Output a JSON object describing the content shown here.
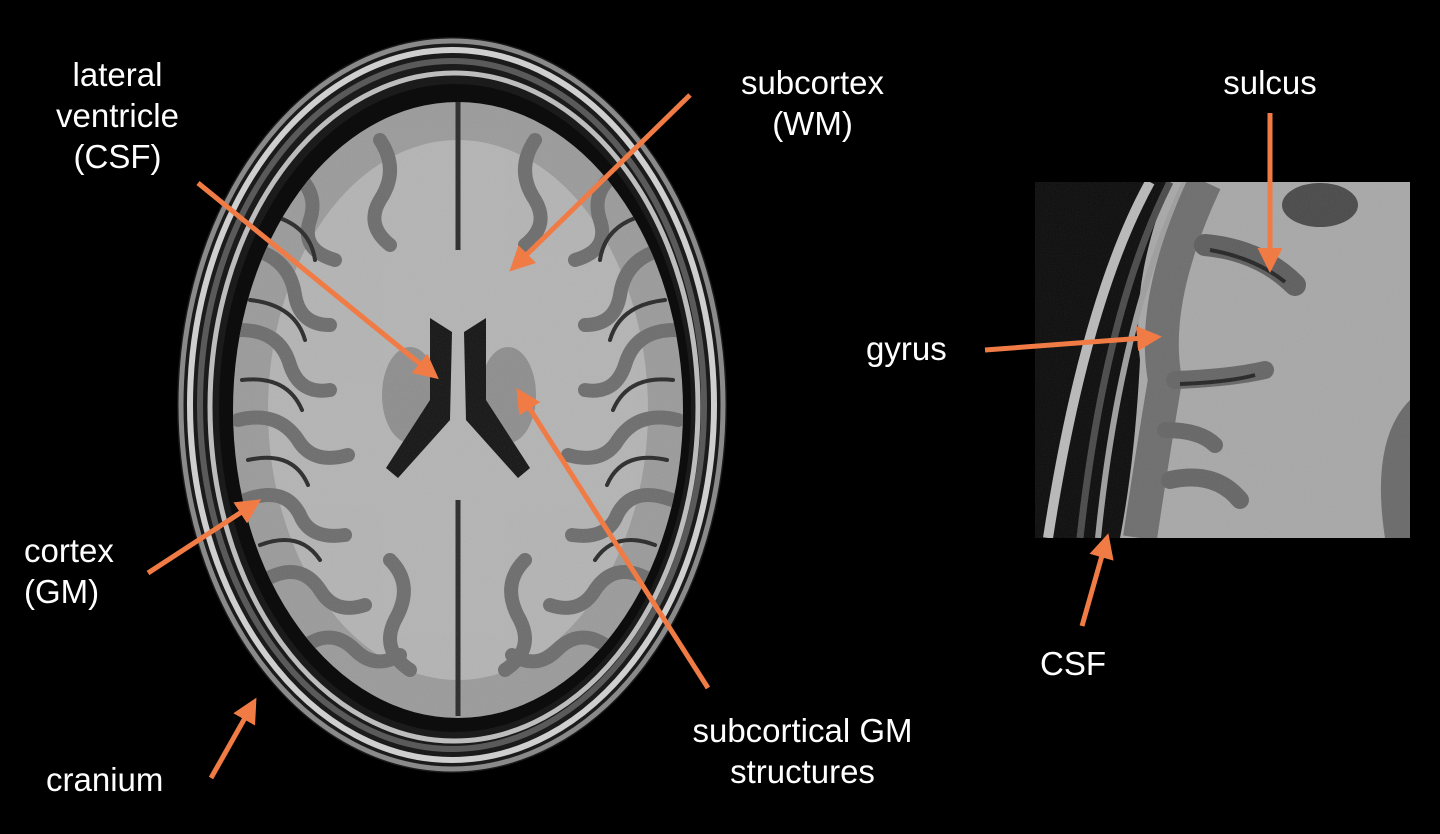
{
  "labels": {
    "lateral_ventricle": "lateral\nventricle\n(CSF)",
    "subcortex": "subcortex\n(WM)",
    "cortex": "cortex\n(GM)",
    "cranium": "cranium",
    "subcortical_gm": "subcortical GM\nstructures",
    "sulcus": "sulcus",
    "gyrus": "gyrus",
    "csf": "CSF"
  },
  "colors": {
    "background": "#000000",
    "arrow": "#F07B45",
    "text": "#FFFFFF"
  },
  "images": {
    "main": "axial-t1-brain-mri-slice",
    "zoom": "zoomed-cortex-inset"
  }
}
